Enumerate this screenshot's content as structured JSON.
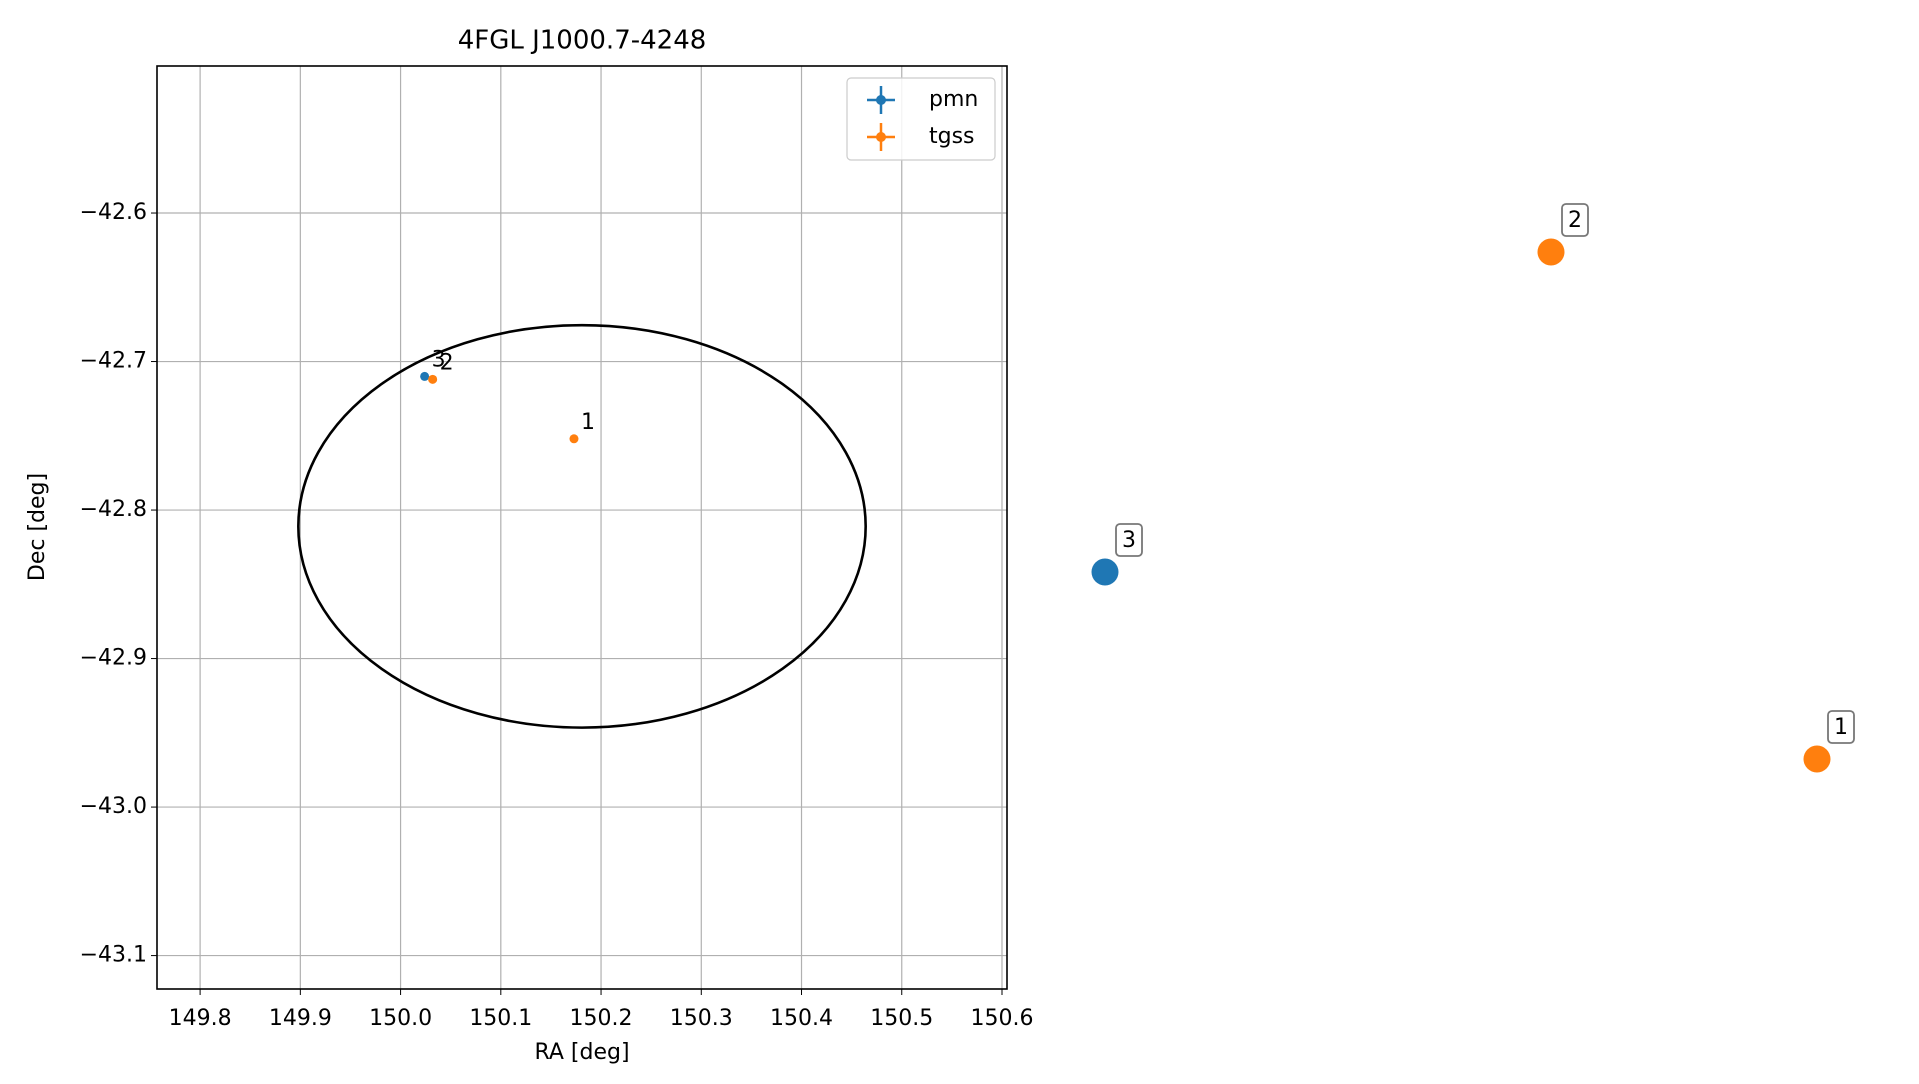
{
  "chart_data": {
    "type": "scatter",
    "title": "4FGL J1000.7-4248",
    "x_label": "RA [deg]",
    "y_label": "Dec [deg]",
    "xlim": [
      149.757,
      150.605
    ],
    "ylim": [
      -43.1225,
      -42.501
    ],
    "xticks": [
      149.8,
      149.9,
      {
        "value": 150,
        "label": "150.0"
      },
      150.1,
      150.2,
      150.3,
      150.4,
      150.5,
      150.6
    ],
    "yticks": [
      {
        "value": -42.6,
        "label": "−42.6"
      },
      {
        "value": -42.7,
        "label": "−42.7"
      },
      {
        "value": -42.8,
        "label": "−42.8"
      },
      {
        "value": -42.9,
        "label": "−42.9"
      },
      {
        "value": -43.0,
        "label": "−43.0"
      },
      {
        "value": -43.1,
        "label": "−43.1"
      }
    ],
    "grid": true,
    "legend": "upper right",
    "ellipse": {
      "ra": 150.181,
      "dec": -42.811,
      "ra_radius": 0.283,
      "dec_radius": 0.1355,
      "color": "#000000"
    },
    "series": [
      {
        "name": "pmn",
        "color": "#1f77b4",
        "x": [
          150.024
        ],
        "y": [
          -42.71
        ],
        "labels": [
          "3"
        ]
      },
      {
        "name": "tgss",
        "color": "#ff7f0e",
        "x": [
          150.173,
          150.032
        ],
        "y": [
          -42.752,
          -42.712
        ],
        "labels": [
          "1",
          "2"
        ]
      }
    ]
  }
}
